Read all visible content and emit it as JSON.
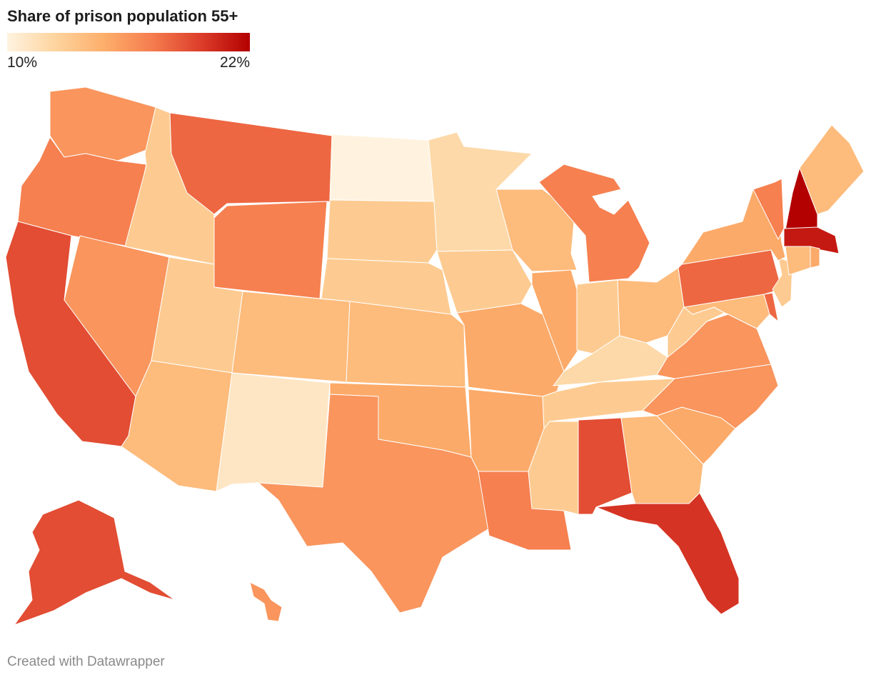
{
  "title": "Share of prison population 55+",
  "legend": {
    "min_label": "10%",
    "max_label": "22%",
    "min_value": 10,
    "max_value": 22,
    "stops": [
      "#fff3e0",
      "#fdd49e",
      "#fdae6b",
      "#f57c4e",
      "#dc3d2a",
      "#b30000"
    ]
  },
  "footer": "Created with Datawrapper",
  "map_data": {
    "type": "choropleth",
    "metric": "share of prison population aged 55+ (%)",
    "states": [
      {
        "id": "WA",
        "name": "Washington",
        "value": 16
      },
      {
        "id": "OR",
        "name": "Oregon",
        "value": 17
      },
      {
        "id": "CA",
        "name": "California",
        "value": 19
      },
      {
        "id": "ID",
        "name": "Idaho",
        "value": 13
      },
      {
        "id": "NV",
        "name": "Nevada",
        "value": 16
      },
      {
        "id": "MT",
        "name": "Montana",
        "value": 18
      },
      {
        "id": "WY",
        "name": "Wyoming",
        "value": 17
      },
      {
        "id": "UT",
        "name": "Utah",
        "value": 13
      },
      {
        "id": "AZ",
        "name": "Arizona",
        "value": 14
      },
      {
        "id": "CO",
        "name": "Colorado",
        "value": 14
      },
      {
        "id": "NM",
        "name": "New Mexico",
        "value": 11
      },
      {
        "id": "ND",
        "name": "North Dakota",
        "value": 10
      },
      {
        "id": "SD",
        "name": "South Dakota",
        "value": 13
      },
      {
        "id": "NE",
        "name": "Nebraska",
        "value": 13
      },
      {
        "id": "KS",
        "name": "Kansas",
        "value": 14
      },
      {
        "id": "OK",
        "name": "Oklahoma",
        "value": 15
      },
      {
        "id": "TX",
        "name": "Texas",
        "value": 16
      },
      {
        "id": "MN",
        "name": "Minnesota",
        "value": 12
      },
      {
        "id": "IA",
        "name": "Iowa",
        "value": 13
      },
      {
        "id": "MO",
        "name": "Missouri",
        "value": 15
      },
      {
        "id": "AR",
        "name": "Arkansas",
        "value": 15
      },
      {
        "id": "LA",
        "name": "Louisiana",
        "value": 17
      },
      {
        "id": "WI",
        "name": "Wisconsin",
        "value": 14
      },
      {
        "id": "IL",
        "name": "Illinois",
        "value": 15
      },
      {
        "id": "MI",
        "name": "Michigan",
        "value": 17
      },
      {
        "id": "IN",
        "name": "Indiana",
        "value": 13
      },
      {
        "id": "OH",
        "name": "Ohio",
        "value": 14
      },
      {
        "id": "KY",
        "name": "Kentucky",
        "value": 12
      },
      {
        "id": "TN",
        "name": "Tennessee",
        "value": 13
      },
      {
        "id": "MS",
        "name": "Mississippi",
        "value": 13
      },
      {
        "id": "AL",
        "name": "Alabama",
        "value": 19
      },
      {
        "id": "GA",
        "name": "Georgia",
        "value": 14
      },
      {
        "id": "FL",
        "name": "Florida",
        "value": 20
      },
      {
        "id": "SC",
        "name": "South Carolina",
        "value": 15
      },
      {
        "id": "NC",
        "name": "North Carolina",
        "value": 16
      },
      {
        "id": "VA",
        "name": "Virginia",
        "value": 16
      },
      {
        "id": "WV",
        "name": "West Virginia",
        "value": 13
      },
      {
        "id": "PA",
        "name": "Pennsylvania",
        "value": 18
      },
      {
        "id": "NY",
        "name": "New York",
        "value": 15
      },
      {
        "id": "VT",
        "name": "Vermont",
        "value": 17
      },
      {
        "id": "NH",
        "name": "New Hampshire",
        "value": 22
      },
      {
        "id": "ME",
        "name": "Maine",
        "value": 14
      },
      {
        "id": "MA",
        "name": "Massachusetts",
        "value": 21
      },
      {
        "id": "CT",
        "name": "Connecticut",
        "value": 14
      },
      {
        "id": "RI",
        "name": "Rhode Island",
        "value": 15
      },
      {
        "id": "NJ",
        "name": "New Jersey",
        "value": 13
      },
      {
        "id": "DE",
        "name": "Delaware",
        "value": 18
      },
      {
        "id": "MD",
        "name": "Maryland",
        "value": 14
      },
      {
        "id": "AK",
        "name": "Alaska",
        "value": 19
      },
      {
        "id": "HI",
        "name": "Hawaii",
        "value": 16
      }
    ]
  }
}
